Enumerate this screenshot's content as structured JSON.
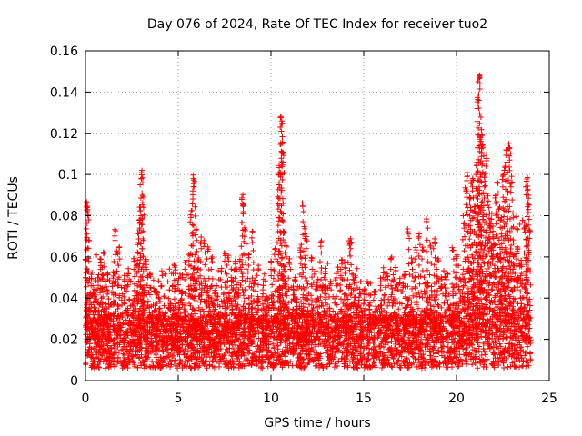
{
  "chart_data": {
    "type": "scatter",
    "title": "Day 076 of 2024, Rate Of TEC Index for receiver tuo2",
    "xlabel": "GPS time / hours",
    "ylabel": "ROTI / TECUs",
    "xlim": [
      0,
      25
    ],
    "ylim": [
      0,
      0.16
    ],
    "x_ticks": [
      "0",
      "5",
      "10",
      "15",
      "20",
      "25"
    ],
    "y_ticks": [
      "0",
      "0.02",
      "0.04",
      "0.06",
      "0.08",
      "0.1",
      "0.12",
      "0.14",
      "0.16"
    ],
    "grid": true,
    "marker": "plus",
    "series": [
      {
        "color": "#ff0000",
        "points": [
          [
            0.05,
            0.088
          ],
          [
            0.1,
            0.086
          ],
          [
            0.12,
            0.084
          ],
          [
            0.3,
            0.052
          ],
          [
            0.5,
            0.046
          ],
          [
            0.7,
            0.05
          ],
          [
            0.9,
            0.055
          ],
          [
            0.8,
            0.06
          ],
          [
            1.0,
            0.063
          ],
          [
            1.2,
            0.055
          ],
          [
            1.5,
            0.053
          ],
          [
            1.6,
            0.074
          ],
          [
            1.7,
            0.063
          ],
          [
            1.8,
            0.065
          ],
          [
            2.1,
            0.052
          ],
          [
            2.3,
            0.055
          ],
          [
            2.6,
            0.06
          ],
          [
            2.75,
            0.058
          ],
          [
            2.85,
            0.072
          ],
          [
            2.9,
            0.08
          ],
          [
            2.95,
            0.086
          ],
          [
            3.0,
            0.101
          ],
          [
            3.05,
            0.102
          ],
          [
            3.1,
            0.09
          ],
          [
            3.15,
            0.045
          ],
          [
            3.3,
            0.06
          ],
          [
            3.5,
            0.032
          ],
          [
            3.8,
            0.028
          ],
          [
            4.0,
            0.035
          ],
          [
            4.3,
            0.033
          ],
          [
            4.6,
            0.04
          ],
          [
            4.8,
            0.058
          ],
          [
            5.0,
            0.05
          ],
          [
            5.2,
            0.045
          ],
          [
            5.4,
            0.06
          ],
          [
            5.6,
            0.062
          ],
          [
            5.7,
            0.083
          ],
          [
            5.8,
            0.1
          ],
          [
            5.85,
            0.098
          ],
          [
            5.95,
            0.074
          ],
          [
            6.1,
            0.06
          ],
          [
            6.2,
            0.07
          ],
          [
            6.4,
            0.068
          ],
          [
            6.6,
            0.065
          ],
          [
            6.8,
            0.06
          ],
          [
            7.0,
            0.045
          ],
          [
            7.3,
            0.055
          ],
          [
            7.5,
            0.064
          ],
          [
            7.7,
            0.062
          ],
          [
            7.9,
            0.05
          ],
          [
            8.1,
            0.06
          ],
          [
            8.3,
            0.06
          ],
          [
            8.45,
            0.091
          ],
          [
            8.5,
            0.088
          ],
          [
            8.6,
            0.076
          ],
          [
            8.8,
            0.062
          ],
          [
            9.0,
            0.073
          ],
          [
            9.1,
            0.05
          ],
          [
            9.3,
            0.057
          ],
          [
            9.6,
            0.05
          ],
          [
            9.8,
            0.042
          ],
          [
            10.0,
            0.06
          ],
          [
            10.2,
            0.065
          ],
          [
            10.4,
            0.101
          ],
          [
            10.45,
            0.105
          ],
          [
            10.5,
            0.116
          ],
          [
            10.55,
            0.129
          ],
          [
            10.6,
            0.127
          ],
          [
            10.65,
            0.112
          ],
          [
            10.7,
            0.073
          ],
          [
            10.8,
            0.066
          ],
          [
            11.0,
            0.06
          ],
          [
            11.3,
            0.05
          ],
          [
            11.6,
            0.066
          ],
          [
            11.7,
            0.088
          ],
          [
            11.8,
            0.075
          ],
          [
            11.9,
            0.07
          ],
          [
            12.2,
            0.06
          ],
          [
            12.5,
            0.05
          ],
          [
            12.7,
            0.068
          ],
          [
            12.9,
            0.055
          ],
          [
            13.2,
            0.05
          ],
          [
            13.5,
            0.052
          ],
          [
            13.8,
            0.06
          ],
          [
            14.0,
            0.058
          ],
          [
            14.2,
            0.068
          ],
          [
            14.3,
            0.07
          ],
          [
            14.5,
            0.05
          ],
          [
            14.8,
            0.045
          ],
          [
            15.0,
            0.04
          ],
          [
            15.3,
            0.038
          ],
          [
            15.6,
            0.045
          ],
          [
            15.9,
            0.05
          ],
          [
            16.1,
            0.055
          ],
          [
            16.3,
            0.052
          ],
          [
            16.5,
            0.06
          ],
          [
            16.7,
            0.055
          ],
          [
            16.9,
            0.05
          ],
          [
            17.2,
            0.052
          ],
          [
            17.4,
            0.075
          ],
          [
            17.6,
            0.06
          ],
          [
            17.8,
            0.065
          ],
          [
            18.0,
            0.072
          ],
          [
            18.2,
            0.065
          ],
          [
            18.4,
            0.08
          ],
          [
            18.6,
            0.068
          ],
          [
            18.8,
            0.07
          ],
          [
            19.0,
            0.06
          ],
          [
            19.2,
            0.048
          ],
          [
            19.5,
            0.055
          ],
          [
            19.8,
            0.065
          ],
          [
            20.0,
            0.062
          ],
          [
            20.2,
            0.05
          ],
          [
            20.4,
            0.08
          ],
          [
            20.5,
            0.095
          ],
          [
            20.6,
            0.103
          ],
          [
            20.7,
            0.09
          ],
          [
            20.8,
            0.098
          ],
          [
            20.9,
            0.1
          ],
          [
            21.0,
            0.085
          ],
          [
            21.1,
            0.106
          ],
          [
            21.15,
            0.138
          ],
          [
            21.2,
            0.151
          ],
          [
            21.25,
            0.15
          ],
          [
            21.3,
            0.12
          ],
          [
            21.35,
            0.122
          ],
          [
            21.4,
            0.115
          ],
          [
            21.5,
            0.1
          ],
          [
            21.6,
            0.11
          ],
          [
            21.7,
            0.09
          ],
          [
            21.8,
            0.078
          ],
          [
            21.9,
            0.082
          ],
          [
            22.0,
            0.075
          ],
          [
            22.1,
            0.092
          ],
          [
            22.2,
            0.097
          ],
          [
            22.3,
            0.085
          ],
          [
            22.4,
            0.08
          ],
          [
            22.5,
            0.1
          ],
          [
            22.6,
            0.106
          ],
          [
            22.7,
            0.112
          ],
          [
            22.8,
            0.115
          ],
          [
            22.9,
            0.113
          ],
          [
            23.0,
            0.1
          ],
          [
            23.1,
            0.062
          ],
          [
            23.3,
            0.065
          ],
          [
            23.5,
            0.058
          ],
          [
            23.7,
            0.078
          ],
          [
            23.8,
            0.1
          ],
          [
            23.85,
            0.096
          ],
          [
            23.9,
            0.089
          ],
          [
            23.95,
            0.075
          ]
        ]
      }
    ]
  }
}
